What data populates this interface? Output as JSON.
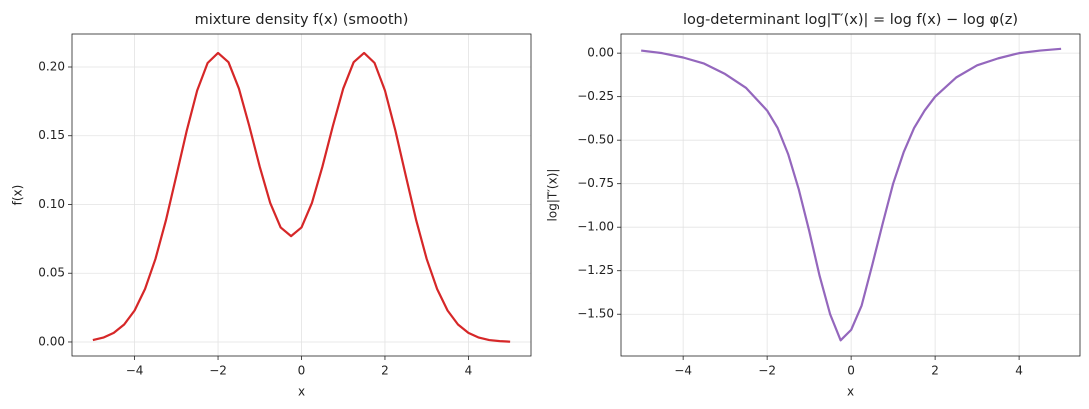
{
  "chart_data": [
    {
      "type": "line",
      "title": "mixture density f(x) (smooth)",
      "xlabel": "x",
      "ylabel": "f(x)",
      "xlim": [
        -5.5,
        5.5
      ],
      "ylim": [
        -0.0102,
        0.224
      ],
      "grid": true,
      "xticks": [
        {
          "value": -4,
          "label": "−4"
        },
        {
          "value": -2,
          "label": "−2"
        },
        0,
        2,
        4
      ],
      "yticks": [
        {
          "value": 0,
          "label": "0.00"
        },
        {
          "value": 0.05,
          "label": "0.05"
        },
        {
          "value": 0.1,
          "label": "0.10"
        },
        {
          "value": 0.15,
          "label": "0.15"
        },
        {
          "value": 0.2,
          "label": "0.20"
        }
      ],
      "series": [
        {
          "name": "f(x)",
          "color": "#d62728",
          "x": [
            -5,
            -4.75,
            -4.5,
            -4.25,
            -4,
            -3.75,
            -3.5,
            -3.25,
            -3,
            -2.75,
            -2.5,
            -2.25,
            -2,
            -1.75,
            -1.5,
            -1.25,
            -1,
            -0.75,
            -0.5,
            -0.25,
            0,
            0.25,
            0.5,
            0.75,
            1,
            1.25,
            1.5,
            1.75,
            2,
            2.25,
            2.5,
            2.75,
            3,
            3.25,
            3.5,
            3.75,
            4,
            4.25,
            4.5,
            4.75,
            5
          ],
          "values": [
            0.0014,
            0.0032,
            0.0066,
            0.0127,
            0.0229,
            0.0385,
            0.0604,
            0.0884,
            0.1208,
            0.1537,
            0.1829,
            0.2029,
            0.2102,
            0.2035,
            0.1843,
            0.1569,
            0.1274,
            0.1011,
            0.0833,
            0.077,
            0.0833,
            0.1011,
            0.1274,
            0.1569,
            0.1843,
            0.2035,
            0.2102,
            0.203,
            0.1829,
            0.1537,
            0.1208,
            0.0884,
            0.0604,
            0.0385,
            0.0229,
            0.0127,
            0.0066,
            0.0032,
            0.0014,
            0.0006,
            0.0002
          ]
        }
      ]
    },
    {
      "type": "line",
      "title": "log-determinant log|T′(x)| = log f(x) − log φ(z)",
      "xlabel": "x",
      "ylabel": "log|T′(x)|",
      "xlim": [
        -5.48,
        5.45
      ],
      "ylim": [
        -1.74,
        0.11
      ],
      "grid": true,
      "xticks": [
        {
          "value": -4,
          "label": "−4"
        },
        {
          "value": -2,
          "label": "−2"
        },
        0,
        2,
        4
      ],
      "yticks": [
        {
          "value": -1.5,
          "label": "−1.50"
        },
        {
          "value": -1.25,
          "label": "−1.25"
        },
        {
          "value": -1,
          "label": "−1.00"
        },
        {
          "value": -0.75,
          "label": "−0.75"
        },
        {
          "value": -0.5,
          "label": "−0.50"
        },
        {
          "value": -0.25,
          "label": "−0.25"
        },
        {
          "value": 0,
          "label": "0.00"
        }
      ],
      "series": [
        {
          "name": "log|T′(x)|",
          "color": "#9467bd",
          "x": [
            -5,
            -4.5,
            -4,
            -3.5,
            -3,
            -2.5,
            -2,
            -1.75,
            -1.5,
            -1.25,
            -1,
            -0.75,
            -0.5,
            -0.25,
            0,
            0.25,
            0.5,
            0.75,
            1,
            1.25,
            1.5,
            1.75,
            2,
            2.5,
            3,
            3.5,
            4,
            4.5,
            5
          ],
          "values": [
            0.015,
            0.0,
            -0.025,
            -0.06,
            -0.12,
            -0.2,
            -0.33,
            -0.43,
            -0.58,
            -0.78,
            -1.02,
            -1.28,
            -1.5,
            -1.65,
            -1.59,
            -1.45,
            -1.22,
            -0.98,
            -0.75,
            -0.57,
            -0.43,
            -0.33,
            -0.25,
            -0.14,
            -0.07,
            -0.03,
            0.0,
            0.015,
            0.025
          ]
        }
      ]
    }
  ]
}
